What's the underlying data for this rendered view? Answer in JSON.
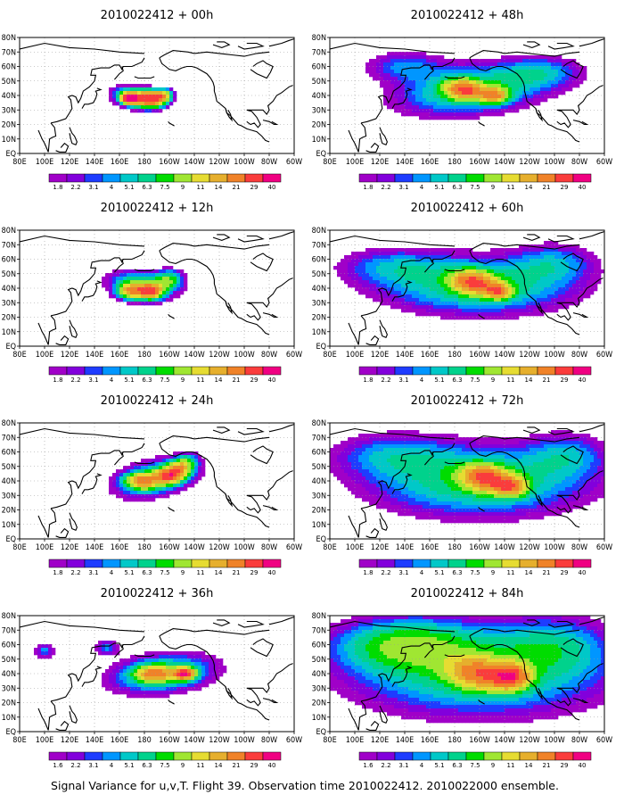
{
  "caption": "Signal Variance for u,v,T. Flight 39. Observation time 2010022412. 2010022000 ensemble.",
  "colors": {
    "scale": [
      "#a000c8",
      "#8200dc",
      "#1e3cff",
      "#0096ff",
      "#00c8c8",
      "#00d28c",
      "#00dc00",
      "#a0e632",
      "#e6dc32",
      "#e6af2d",
      "#f08228",
      "#fa3c3c",
      "#f00082"
    ],
    "land": "#000000",
    "grid": "#999999"
  },
  "colorbar_labels": [
    "1.8",
    "2.2",
    "3.1",
    "4",
    "5.1",
    "6.3",
    "7.5",
    "9",
    "11",
    "14",
    "21",
    "29",
    "40"
  ],
  "colorbar_labels_alt": [
    "1.6",
    "2.2",
    "3.1",
    "4",
    "5.1",
    "6.3",
    "7.5",
    "9",
    "11",
    "14",
    "21",
    "29",
    "40"
  ],
  "x_ticks": [
    "80E",
    "100E",
    "120E",
    "140E",
    "160E",
    "180",
    "160W",
    "140W",
    "120W",
    "100W",
    "80W",
    "60W"
  ],
  "y_ticks": [
    "80N",
    "70N",
    "60N",
    "50N",
    "40N",
    "30N",
    "20N",
    "10N",
    "EQ"
  ],
  "panels": [
    {
      "title": "2010022412 + 00h",
      "lead_hours": 0,
      "labels_key": "colorbar_labels"
    },
    {
      "title": "2010022412 + 48h",
      "lead_hours": 48,
      "labels_key": "colorbar_labels"
    },
    {
      "title": "2010022412 + 12h",
      "lead_hours": 12,
      "labels_key": "colorbar_labels"
    },
    {
      "title": "2010022412 + 60h",
      "lead_hours": 60,
      "labels_key": "colorbar_labels"
    },
    {
      "title": "2010022412 + 24h",
      "lead_hours": 24,
      "labels_key": "colorbar_labels"
    },
    {
      "title": "2010022412 + 72h",
      "lead_hours": 72,
      "labels_key": "colorbar_labels"
    },
    {
      "title": "2010022412 + 36h",
      "lead_hours": 36,
      "labels_key": "colorbar_labels_alt"
    },
    {
      "title": "2010022412 + 84h",
      "lead_hours": 84,
      "labels_key": "colorbar_labels_alt"
    }
  ]
}
